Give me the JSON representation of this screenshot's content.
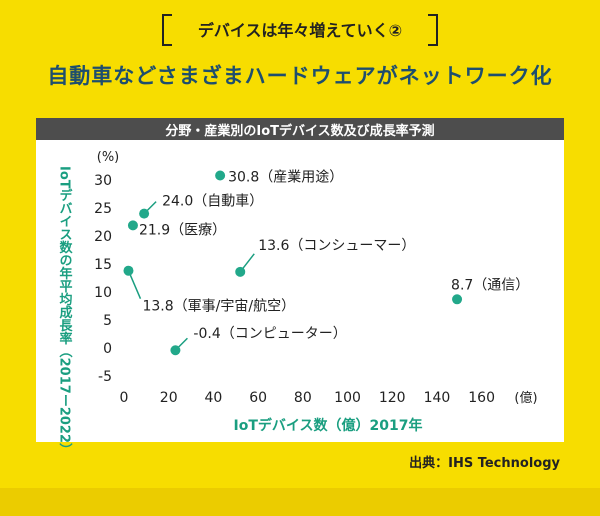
{
  "section_label": "デバイスは年々増えていく②",
  "headline": "自動車などさまざまハードウェアがネットワーク化",
  "chart_title": "分野・産業別のIoTデバイス数及び成長率予測",
  "source": "出典：IHS Technology",
  "colors": {
    "background": "#F7DD00",
    "accent": "#1A9E80",
    "point": "#22A88A",
    "panel_header": "#4D4D4D"
  },
  "chart_data": {
    "type": "scatter",
    "xlabel": "IoTデバイス数（億）2017年",
    "x_unit": "(億)",
    "ylabel": "IoTデバイス数の年平均成長率（2017ー2022）",
    "y_unit": "(%)",
    "xlim": [
      0,
      170
    ],
    "ylim": [
      -5,
      30
    ],
    "x_ticks": [
      0,
      20,
      40,
      60,
      80,
      100,
      120,
      140,
      160
    ],
    "y_ticks": [
      -5,
      0,
      5,
      10,
      15,
      20,
      25,
      30
    ],
    "grid": false,
    "points": [
      {
        "label": "30.8（産業用途）",
        "x": 43,
        "y": 30.8
      },
      {
        "label": "24.0（自動車）",
        "x": 9,
        "y": 24.0
      },
      {
        "label": "21.9（医療）",
        "x": 4,
        "y": 21.9
      },
      {
        "label": "13.6（コンシューマー）",
        "x": 52,
        "y": 13.6
      },
      {
        "label": "13.8（軍事/宇宙/航空）",
        "x": 2,
        "y": 13.8
      },
      {
        "label": "8.7（通信）",
        "x": 149,
        "y": 8.7
      },
      {
        "label": "-0.4（コンピューター）",
        "x": 23,
        "y": -0.4
      }
    ]
  }
}
